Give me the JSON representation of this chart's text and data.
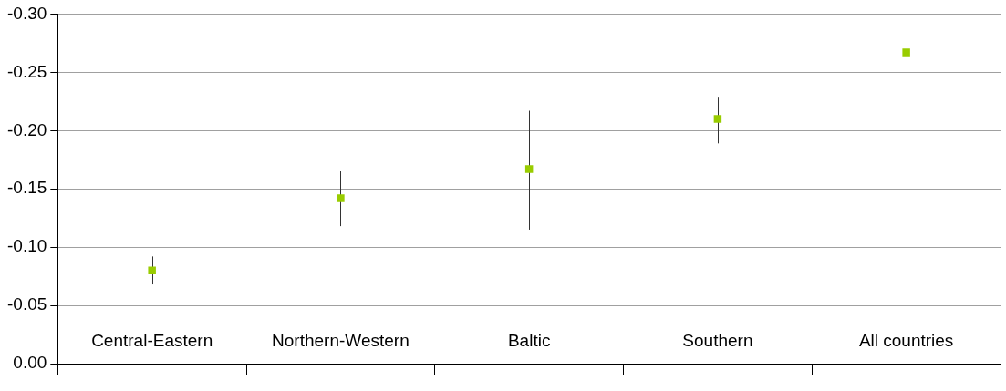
{
  "chart_data": {
    "type": "scatter",
    "categories": [
      "Central-Eastern",
      "Northern-Western",
      "Baltic",
      "Southern",
      "All countries"
    ],
    "values": [
      -0.08,
      -0.142,
      -0.167,
      -0.21,
      -0.267
    ],
    "errors": [
      [
        -0.092,
        -0.068
      ],
      [
        -0.165,
        -0.118
      ],
      [
        -0.217,
        -0.115
      ],
      [
        -0.229,
        -0.189
      ],
      [
        -0.283,
        -0.251
      ]
    ],
    "color": "#99cc00",
    "marker": "square",
    "ylim": [
      0,
      -0.3
    ],
    "yticks": [
      {
        "value": 0,
        "label": "0.00"
      },
      {
        "value": -0.05,
        "label": "-0.05"
      },
      {
        "value": -0.1,
        "label": "-0.10"
      },
      {
        "value": -0.15,
        "label": "-0.15"
      },
      {
        "value": -0.2,
        "label": "-0.20"
      },
      {
        "value": -0.25,
        "label": "-0.25"
      },
      {
        "value": -0.3,
        "label": "-0.30"
      }
    ],
    "grid": "y",
    "legend": false
  }
}
